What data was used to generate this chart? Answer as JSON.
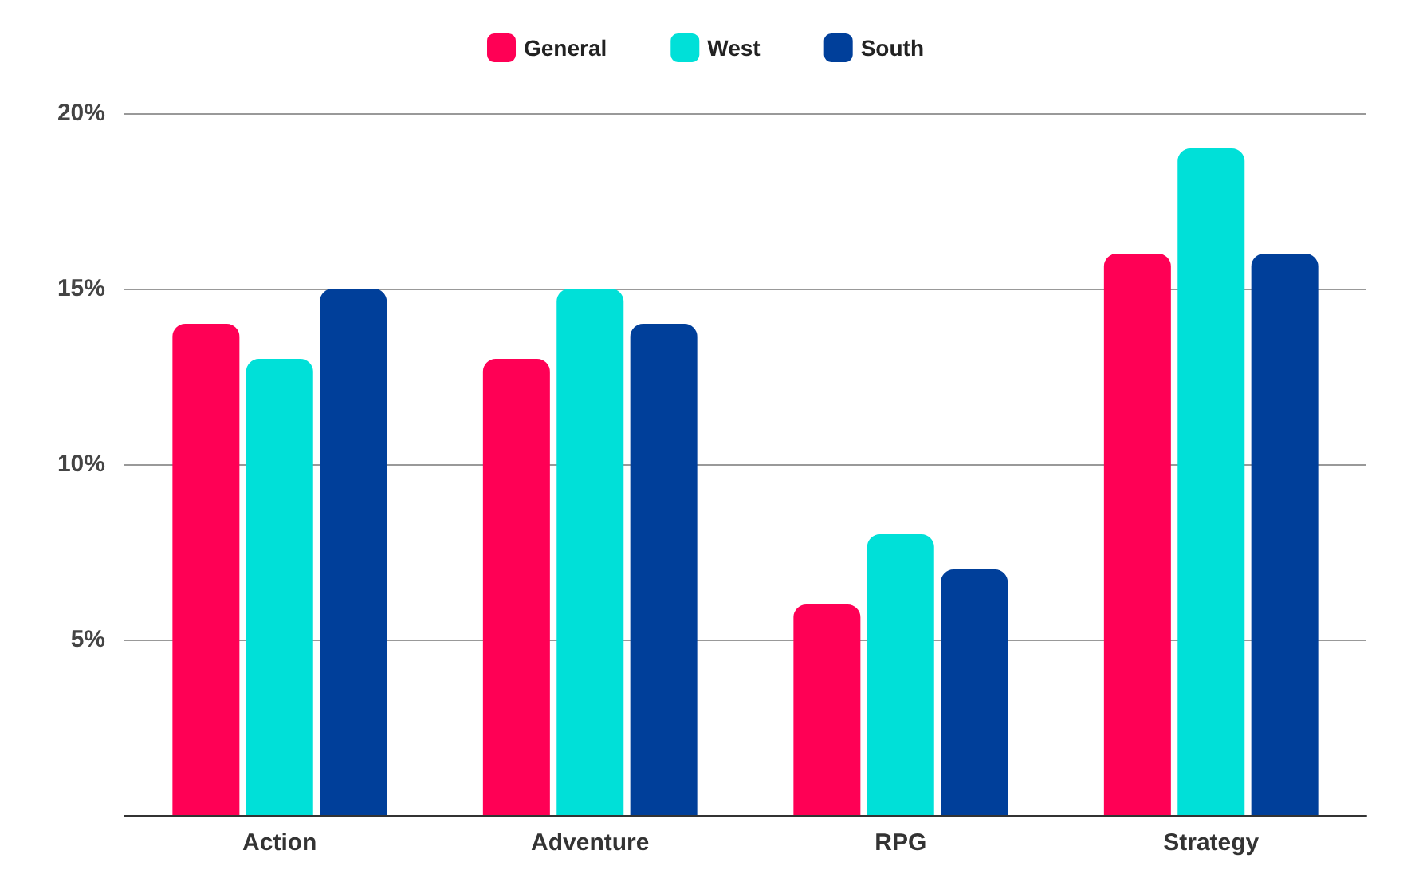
{
  "chart_data": {
    "type": "bar",
    "categories": [
      "Action",
      "Adventure",
      "RPG",
      "Strategy"
    ],
    "series": [
      {
        "name": "General",
        "color": "#ff0055",
        "values": [
          14,
          13,
          6,
          16
        ]
      },
      {
        "name": "West",
        "color": "#00e0d8",
        "values": [
          13,
          15,
          8,
          19
        ]
      },
      {
        "name": "South",
        "color": "#003f9a",
        "values": [
          15,
          14,
          7,
          16
        ]
      }
    ],
    "ylim": [
      0,
      20
    ],
    "yticks": [
      {
        "value": 0,
        "label": null
      },
      {
        "value": 5,
        "label": "5%"
      },
      {
        "value": 10,
        "label": "10%"
      },
      {
        "value": 15,
        "label": "15%"
      },
      {
        "value": 20,
        "label": "20%"
      }
    ],
    "grid": "y",
    "legend": "top"
  }
}
